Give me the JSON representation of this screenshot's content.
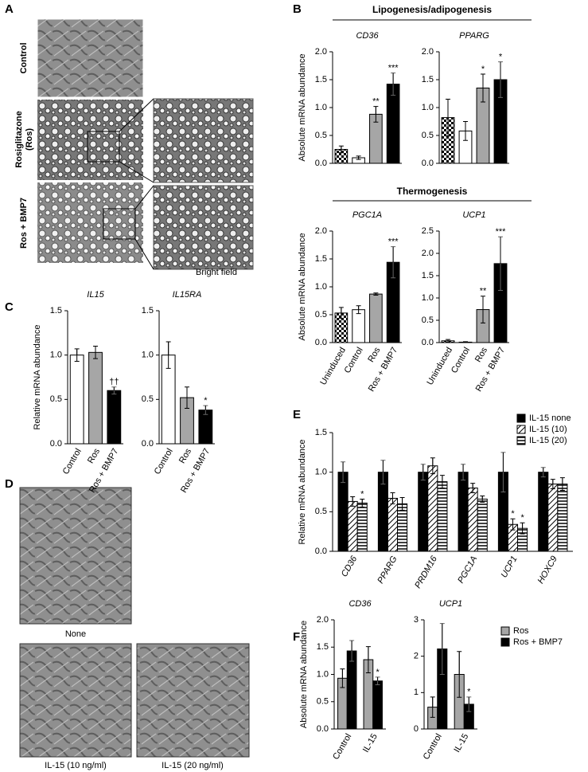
{
  "panel_labels": [
    "A",
    "B",
    "C",
    "D",
    "E",
    "F"
  ],
  "panel_a": {
    "rows": [
      [
        "Control"
      ],
      [
        "Rosiglitazone",
        "(Ros)"
      ],
      [
        "Ros + BMP7"
      ]
    ],
    "caption": "Bright field"
  },
  "panel_b": {
    "groups": [
      "Lipogenesis/adipogenesis",
      "Thermogenesis"
    ]
  },
  "panel_d": {
    "captions": [
      "None",
      "IL-15 (10 ng/ml)",
      "IL-15 (20 ng/ml)"
    ]
  },
  "chart_data": [
    {
      "type": "bar",
      "title": "CD36",
      "ylabel": "Absolute mRNA abundance",
      "ylim": [
        0,
        2
      ],
      "yticks": [
        {
          "value": 0,
          "label": "0.0"
        },
        0.5,
        {
          "value": 1,
          "label": "1.0"
        },
        1.5,
        {
          "value": 2,
          "label": "2.0"
        }
      ],
      "series": [
        {
          "colors": [
            "checker",
            "#ffffff",
            "#a6a6a6",
            "#000000"
          ],
          "values": [
            0.25,
            0.1,
            0.88,
            1.42
          ],
          "errors": [
            0.06,
            0.03,
            0.14,
            0.2
          ],
          "annotations": [
            null,
            null,
            "**",
            "***"
          ]
        }
      ]
    },
    {
      "type": "bar",
      "title": "PPARG",
      "ylim": [
        0,
        2
      ],
      "yticks": [
        {
          "value": 0,
          "label": "0.0"
        },
        0.5,
        {
          "value": 1,
          "label": "1.0"
        },
        1.5,
        {
          "value": 2,
          "label": "2.0"
        }
      ],
      "series": [
        {
          "colors": [
            "checker",
            "#ffffff",
            "#a6a6a6",
            "#000000"
          ],
          "values": [
            0.82,
            0.58,
            1.35,
            1.5
          ],
          "errors": [
            0.33,
            0.17,
            0.25,
            0.32
          ],
          "annotations": [
            null,
            null,
            "*",
            "*"
          ]
        }
      ]
    },
    {
      "type": "bar",
      "title": "PGC1A",
      "ylabel": "Absolute mRNA abundance",
      "categories": [
        "Uninduced",
        "Control",
        "Ros",
        "Ros + BMP7"
      ],
      "ylim": [
        0,
        2
      ],
      "yticks": [
        {
          "value": 0,
          "label": "0.0"
        },
        0.5,
        {
          "value": 1,
          "label": "1.0"
        },
        1.5,
        {
          "value": 2,
          "label": "2.0"
        }
      ],
      "series": [
        {
          "colors": [
            "checker",
            "#ffffff",
            "#a6a6a6",
            "#000000"
          ],
          "values": [
            0.53,
            0.59,
            0.87,
            1.44
          ],
          "errors": [
            0.1,
            0.07,
            0.02,
            0.28
          ],
          "annotations": [
            null,
            null,
            null,
            "***"
          ]
        }
      ]
    },
    {
      "type": "bar",
      "title": "UCP1",
      "categories": [
        "Uninduced",
        "Control",
        "Ros",
        "Ros + BMP7"
      ],
      "ylim": [
        0,
        2.5
      ],
      "yticks": [
        {
          "value": 0,
          "label": "0.0"
        },
        0.5,
        {
          "value": 1,
          "label": "1.0"
        },
        1.5,
        {
          "value": 2,
          "label": "2.0"
        },
        2.5
      ],
      "series": [
        {
          "colors": [
            "checker",
            "#ffffff",
            "#a6a6a6",
            "#000000"
          ],
          "values": [
            0.04,
            0.01,
            0.74,
            1.77
          ],
          "errors": [
            0.03,
            0.01,
            0.3,
            0.6
          ],
          "annotations": [
            null,
            null,
            "**",
            "***"
          ]
        }
      ]
    },
    {
      "type": "bar",
      "title": "IL15",
      "ylabel": "Relative mRNA abundance",
      "categories": [
        "Control",
        "Ros",
        "Ros + BMP7"
      ],
      "ylim": [
        0,
        1.5
      ],
      "yticks": [
        {
          "value": 0,
          "label": "0.0"
        },
        0.5,
        {
          "value": 1,
          "label": "1.0"
        },
        1.5
      ],
      "series": [
        {
          "colors": [
            "#ffffff",
            "#a6a6a6",
            "#000000"
          ],
          "values": [
            1.0,
            1.03,
            0.6
          ],
          "errors": [
            0.07,
            0.07,
            0.04
          ],
          "annotations": [
            null,
            null,
            "††"
          ]
        }
      ]
    },
    {
      "type": "bar",
      "title": "IL15RA",
      "categories": [
        "Control",
        "Ros",
        "Ros + BMP7"
      ],
      "ylim": [
        0,
        1.5
      ],
      "yticks": [
        {
          "value": 0,
          "label": "0.0"
        },
        0.5,
        {
          "value": 1,
          "label": "1.0"
        },
        1.5
      ],
      "series": [
        {
          "colors": [
            "#ffffff",
            "#a6a6a6",
            "#000000"
          ],
          "values": [
            1.0,
            0.52,
            0.38
          ],
          "errors": [
            0.15,
            0.12,
            0.05
          ],
          "annotations": [
            null,
            null,
            "*"
          ]
        }
      ]
    },
    {
      "type": "bar",
      "ylabel": "Relative mRNA abundance",
      "legend": "top-right",
      "italic_categories": true,
      "categories": [
        "CD36",
        "PPARG",
        "PRDM16",
        "PGC1A",
        "UCP1",
        "HOXC9"
      ],
      "ylim": [
        0,
        1.5
      ],
      "yticks": [
        {
          "value": 0,
          "label": "0.0"
        },
        0.5,
        {
          "value": 1,
          "label": "1.0"
        },
        1.5
      ],
      "series": [
        {
          "name": "IL-15 none",
          "color": "#000000",
          "values": [
            1.0,
            1.0,
            1.0,
            1.0,
            1.0,
            1.0
          ],
          "errors": [
            0.13,
            0.15,
            0.1,
            0.1,
            0.25,
            0.06
          ]
        },
        {
          "name": "IL-15 (10)",
          "color": "diagonal",
          "values": [
            0.63,
            0.67,
            1.08,
            0.8,
            0.34,
            0.85
          ],
          "errors": [
            0.06,
            0.07,
            0.1,
            0.06,
            0.07,
            0.06
          ],
          "annotations": [
            null,
            null,
            null,
            null,
            "*",
            null
          ]
        },
        {
          "name": "IL-15 (20)",
          "color": "horizontal",
          "values": [
            0.61,
            0.6,
            0.88,
            0.66,
            0.29,
            0.85
          ],
          "errors": [
            0.05,
            0.08,
            0.08,
            0.04,
            0.07,
            0.08
          ],
          "annotations": [
            "*",
            null,
            null,
            null,
            "*",
            null
          ]
        }
      ]
    },
    {
      "type": "bar",
      "title": "CD36",
      "ylabel": "Absolute mRNA abundance",
      "categories": [
        "Control",
        "IL-15"
      ],
      "ylim": [
        0,
        2
      ],
      "yticks": [
        {
          "value": 0,
          "label": "0.0"
        },
        0.5,
        {
          "value": 1,
          "label": "1.0"
        },
        1.5,
        {
          "value": 2,
          "label": "2.0"
        }
      ],
      "series": [
        {
          "color": "#a6a6a6",
          "values": [
            0.93,
            1.27
          ],
          "errors": [
            0.17,
            0.24
          ]
        },
        {
          "color": "#000000",
          "values": [
            1.43,
            0.88
          ],
          "errors": [
            0.19,
            0.07
          ],
          "annotations": [
            null,
            "*"
          ]
        }
      ]
    },
    {
      "type": "bar",
      "title": "UCP1",
      "legend": "right",
      "categories": [
        "Control",
        "IL-15"
      ],
      "ylim": [
        0,
        3
      ],
      "yticks": [
        0,
        1,
        2,
        3
      ],
      "series": [
        {
          "name": "Ros",
          "color": "#a6a6a6",
          "values": [
            0.6,
            1.5
          ],
          "errors": [
            0.28,
            0.63
          ]
        },
        {
          "name": "Ros + BMP7",
          "color": "#000000",
          "values": [
            2.2,
            0.68
          ],
          "errors": [
            0.7,
            0.2
          ],
          "annotations": [
            null,
            "*"
          ]
        }
      ]
    }
  ]
}
